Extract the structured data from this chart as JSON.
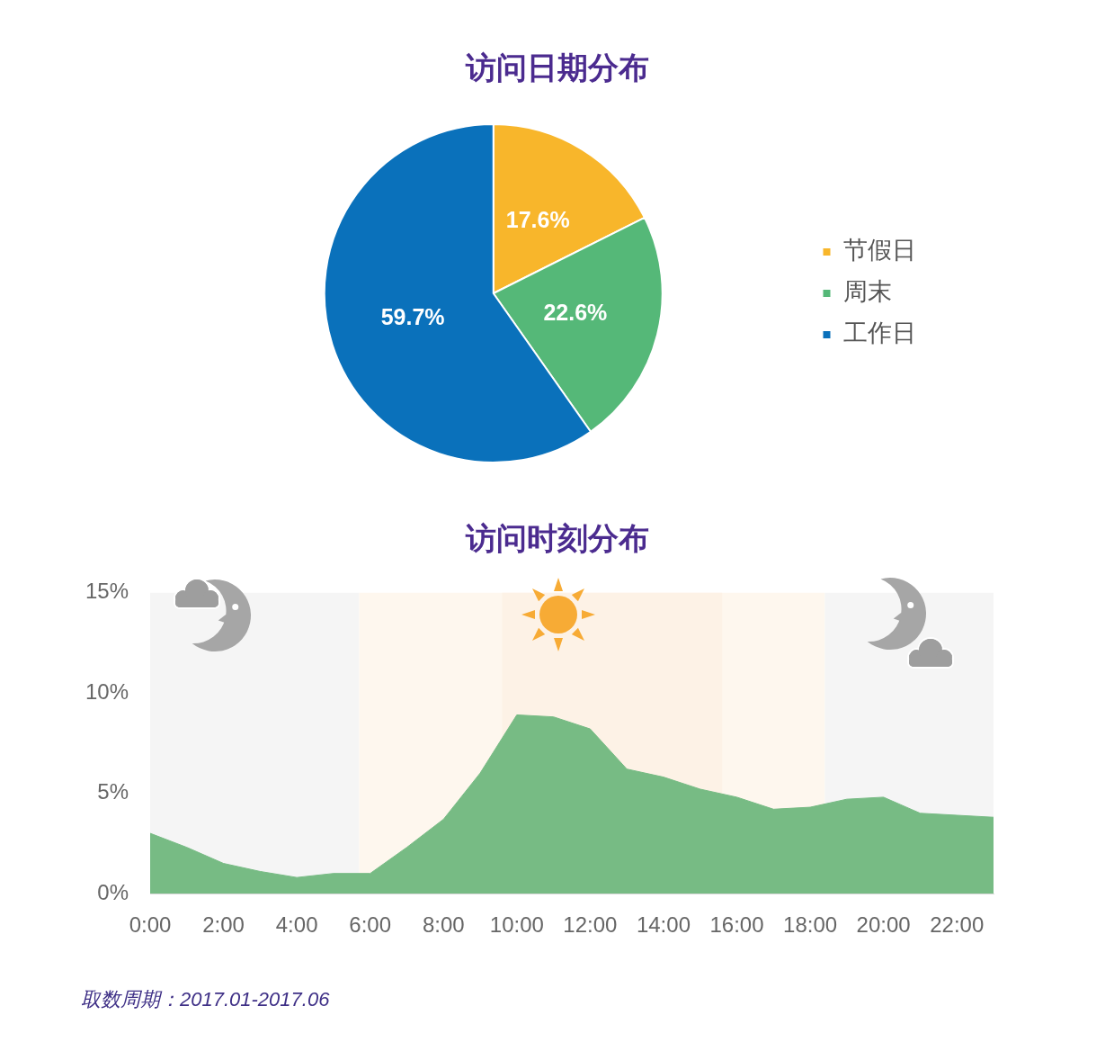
{
  "chart_data": [
    {
      "type": "pie",
      "title": "访问日期分布",
      "categories": [
        "节假日",
        "周末",
        "工作日"
      ],
      "values": [
        17.6,
        22.6,
        59.7
      ],
      "colors": [
        "#f8b62b",
        "#55b878",
        "#0a71bb"
      ],
      "value_labels": [
        "17.6%",
        "22.6%",
        "59.7%"
      ],
      "legend": "right"
    },
    {
      "type": "area",
      "title": "访问时刻分布",
      "x": [
        0,
        1,
        2,
        3,
        4,
        5,
        6,
        7,
        8,
        9,
        10,
        11,
        12,
        13,
        14,
        15,
        16,
        17,
        18,
        19,
        20,
        21,
        22,
        23
      ],
      "values": [
        3,
        2.3,
        1.5,
        1.1,
        0.8,
        1,
        1,
        2.3,
        3.7,
        6,
        8.9,
        8.8,
        8.2,
        6.2,
        5.8,
        5.2,
        4.8,
        4.2,
        4.3,
        4.7,
        4.8,
        4,
        3.9,
        3.8
      ],
      "color": "#77bb84",
      "xlim": [
        0,
        23
      ],
      "xticks": [
        {
          "value": 0,
          "label": "0:00"
        },
        {
          "value": 2,
          "label": "2:00"
        },
        {
          "value": 4,
          "label": "4:00"
        },
        {
          "value": 6,
          "label": "6:00"
        },
        {
          "value": 8,
          "label": "8:00"
        },
        {
          "value": 10,
          "label": "10:00"
        },
        {
          "value": 12,
          "label": "12:00"
        },
        {
          "value": 14,
          "label": "14:00"
        },
        {
          "value": 16,
          "label": "16:00"
        },
        {
          "value": 18,
          "label": "18:00"
        },
        {
          "value": 20,
          "label": "20:00"
        },
        {
          "value": 22,
          "label": "22:00"
        }
      ],
      "ylim": [
        0,
        15
      ],
      "yticks": [
        {
          "value": 0,
          "label": "0%"
        },
        {
          "value": 5,
          "label": "5%"
        },
        {
          "value": 10,
          "label": "10%"
        },
        {
          "value": 15,
          "label": "15%"
        }
      ],
      "bands": [
        {
          "axis": "x",
          "from": 0,
          "to": 5.7,
          "color": "#f5f5f5"
        },
        {
          "axis": "x",
          "from": 5.7,
          "to": 18.4,
          "color": "#fef7ee"
        },
        {
          "axis": "x",
          "from": 9.6,
          "to": 15.6,
          "color": "#fdf2e6"
        },
        {
          "axis": "x",
          "from": 18.4,
          "to": 23,
          "color": "#f5f5f5"
        }
      ],
      "marker": "none",
      "grid": false,
      "legend": false,
      "annotations": [
        "取数周期：2017.01-2017.06"
      ]
    }
  ]
}
